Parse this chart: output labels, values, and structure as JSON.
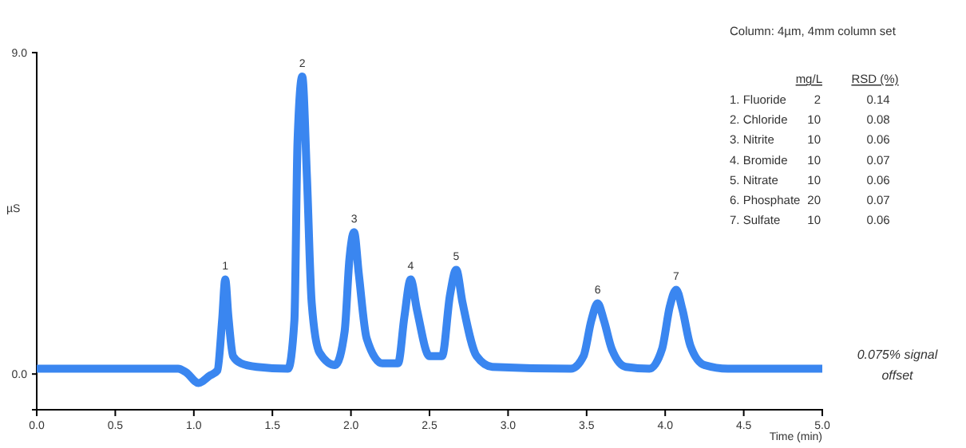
{
  "chart_data": {
    "type": "line",
    "xlabel": "Time (min)",
    "ylabel": "µS",
    "x": [
      0,
      0.9,
      0.95,
      1.03,
      1.1,
      1.15,
      1.18,
      1.2,
      1.22,
      1.25,
      1.3,
      1.4,
      1.6,
      1.64,
      1.66,
      1.69,
      1.72,
      1.75,
      1.8,
      1.9,
      1.96,
      1.99,
      2.02,
      2.05,
      2.1,
      2.2,
      2.3,
      2.34,
      2.38,
      2.42,
      2.5,
      2.58,
      2.63,
      2.67,
      2.71,
      2.8,
      2.9,
      3.4,
      3.48,
      3.53,
      3.57,
      3.61,
      3.66,
      3.75,
      3.9,
      3.98,
      4.03,
      4.07,
      4.11,
      4.16,
      4.25,
      4.4,
      5.0
    ],
    "series": [
      {
        "color": "#3a86f0",
        "values": [
          0.15,
          0.15,
          0.05,
          -0.25,
          -0.05,
          0.1,
          1.5,
          2.65,
          1.6,
          0.5,
          0.3,
          0.2,
          0.15,
          1.5,
          6.5,
          8.33,
          5.5,
          2.0,
          0.6,
          0.25,
          1.2,
          3.2,
          3.97,
          2.8,
          1.0,
          0.3,
          0.3,
          1.6,
          2.65,
          1.8,
          0.5,
          0.5,
          2.2,
          2.92,
          2.0,
          0.5,
          0.2,
          0.15,
          0.5,
          1.5,
          1.98,
          1.5,
          0.7,
          0.2,
          0.15,
          0.7,
          1.9,
          2.36,
          1.8,
          0.8,
          0.25,
          0.15,
          0.15
        ]
      }
    ],
    "xlim": [
      0,
      5
    ],
    "xticks": [
      {
        "value": 0,
        "label": "0.0"
      },
      {
        "value": 0.5,
        "label": "0.5"
      },
      {
        "value": 1,
        "label": "1.0"
      },
      {
        "value": 1.5,
        "label": "1.5"
      },
      {
        "value": 2,
        "label": "2.0"
      },
      {
        "value": 2.5,
        "label": "2.5"
      },
      {
        "value": 3,
        "label": "3.0"
      },
      {
        "value": 3.5,
        "label": "3.5"
      },
      {
        "value": 4,
        "label": "4.0"
      },
      {
        "value": 4.5,
        "label": "4.5"
      },
      {
        "value": 5,
        "label": "5.0"
      }
    ],
    "ylim": [
      -1,
      9
    ],
    "yticks": [
      {
        "value": 0,
        "label": "0.0"
      },
      {
        "value": 9,
        "label": "9.0"
      }
    ],
    "line_style": "solid",
    "marker": "none",
    "grid": false,
    "annotations": [
      "Column: 4µm, 4mm column set",
      "mg/L",
      "RSD (%)",
      "1. Fluoride",
      "2",
      "0.14",
      "2. Chloride",
      "10",
      "0.08",
      "3. Nitrite",
      "10",
      "0.06",
      "4. Bromide",
      "10",
      "0.07",
      "5. Nitrate",
      "10",
      "0.06",
      "6. Phosphate",
      "20",
      "0.07",
      "7. Sulfate",
      "10",
      "0.06",
      "0.075% signal offset",
      {
        "text": "1",
        "x": 1.2,
        "y": 2.65
      },
      {
        "text": "2",
        "x": 1.69,
        "y": 8.33
      },
      {
        "text": "3",
        "x": 2.02,
        "y": 3.97
      },
      {
        "text": "4",
        "x": 2.38,
        "y": 2.65
      },
      {
        "text": "5",
        "x": 2.67,
        "y": 2.92
      },
      {
        "text": "6",
        "x": 3.57,
        "y": 1.98
      },
      {
        "text": "7",
        "x": 4.07,
        "y": 2.36
      }
    ]
  }
}
